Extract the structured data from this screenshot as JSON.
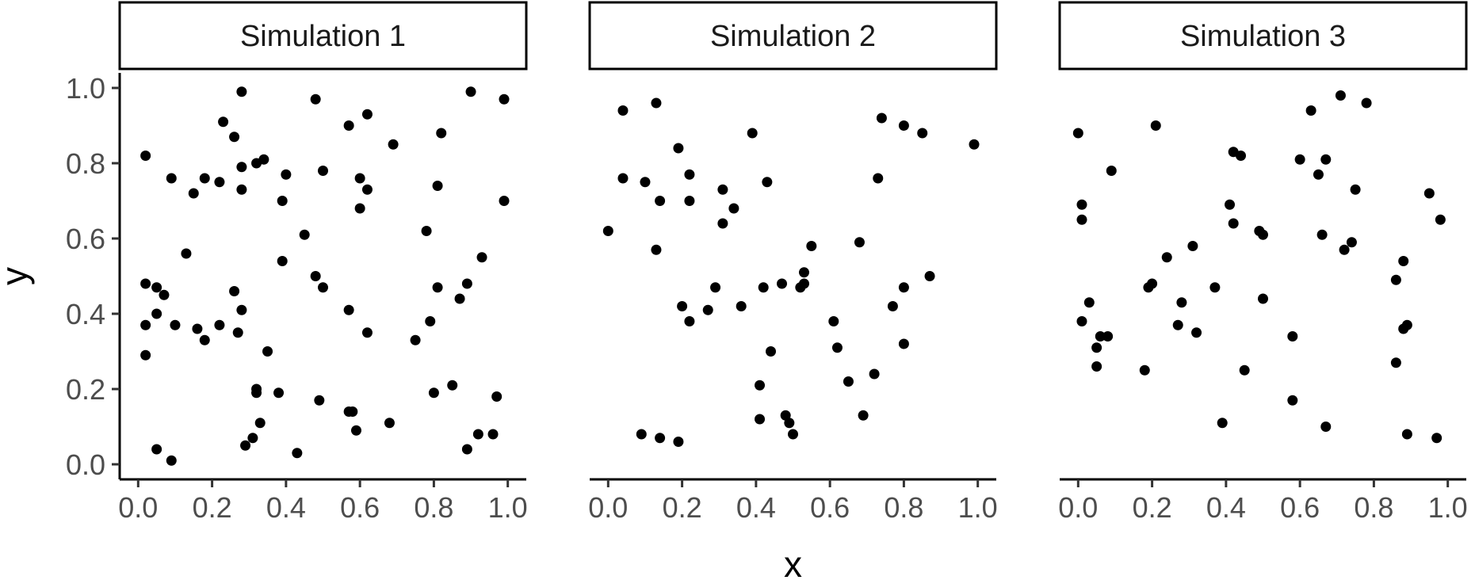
{
  "chart_data": {
    "type": "scatter",
    "xlabel": "x",
    "ylabel": "y",
    "xlim": [
      -0.05,
      1.05
    ],
    "ylim": [
      -0.04,
      1.04
    ],
    "x_ticks": [
      "0.0",
      "0.2",
      "0.4",
      "0.6",
      "0.8",
      "1.0"
    ],
    "y_ticks": [
      "0.0",
      "0.2",
      "0.4",
      "0.6",
      "0.8",
      "1.0"
    ],
    "grid": false,
    "legend": "none",
    "point_color": "#000000",
    "panels": [
      {
        "title": "Simulation 1",
        "points": [
          [
            0.28,
            0.99
          ],
          [
            0.48,
            0.97
          ],
          [
            0.9,
            0.99
          ],
          [
            0.99,
            0.97
          ],
          [
            0.23,
            0.91
          ],
          [
            0.26,
            0.87
          ],
          [
            0.57,
            0.9
          ],
          [
            0.62,
            0.93
          ],
          [
            0.82,
            0.88
          ],
          [
            0.69,
            0.85
          ],
          [
            0.02,
            0.82
          ],
          [
            0.28,
            0.79
          ],
          [
            0.32,
            0.8
          ],
          [
            0.34,
            0.81
          ],
          [
            0.5,
            0.78
          ],
          [
            0.09,
            0.76
          ],
          [
            0.18,
            0.76
          ],
          [
            0.22,
            0.75
          ],
          [
            0.4,
            0.77
          ],
          [
            0.6,
            0.76
          ],
          [
            0.81,
            0.74
          ],
          [
            0.15,
            0.72
          ],
          [
            0.28,
            0.73
          ],
          [
            0.62,
            0.73
          ],
          [
            0.39,
            0.7
          ],
          [
            0.99,
            0.7
          ],
          [
            0.6,
            0.68
          ],
          [
            0.78,
            0.62
          ],
          [
            0.45,
            0.61
          ],
          [
            0.13,
            0.56
          ],
          [
            0.93,
            0.55
          ],
          [
            0.39,
            0.54
          ],
          [
            0.48,
            0.5
          ],
          [
            0.02,
            0.48
          ],
          [
            0.05,
            0.47
          ],
          [
            0.5,
            0.47
          ],
          [
            0.81,
            0.47
          ],
          [
            0.89,
            0.48
          ],
          [
            0.26,
            0.46
          ],
          [
            0.07,
            0.45
          ],
          [
            0.87,
            0.44
          ],
          [
            0.28,
            0.41
          ],
          [
            0.05,
            0.4
          ],
          [
            0.57,
            0.41
          ],
          [
            0.02,
            0.37
          ],
          [
            0.1,
            0.37
          ],
          [
            0.16,
            0.36
          ],
          [
            0.22,
            0.37
          ],
          [
            0.27,
            0.35
          ],
          [
            0.62,
            0.35
          ],
          [
            0.79,
            0.38
          ],
          [
            0.75,
            0.33
          ],
          [
            0.18,
            0.33
          ],
          [
            0.02,
            0.29
          ],
          [
            0.35,
            0.3
          ],
          [
            0.32,
            0.2
          ],
          [
            0.32,
            0.19
          ],
          [
            0.38,
            0.19
          ],
          [
            0.8,
            0.19
          ],
          [
            0.85,
            0.21
          ],
          [
            0.49,
            0.17
          ],
          [
            0.97,
            0.18
          ],
          [
            0.57,
            0.14
          ],
          [
            0.58,
            0.14
          ],
          [
            0.33,
            0.11
          ],
          [
            0.68,
            0.11
          ],
          [
            0.59,
            0.09
          ],
          [
            0.31,
            0.07
          ],
          [
            0.92,
            0.08
          ],
          [
            0.96,
            0.08
          ],
          [
            0.29,
            0.05
          ],
          [
            0.05,
            0.04
          ],
          [
            0.43,
            0.03
          ],
          [
            0.89,
            0.04
          ],
          [
            0.09,
            0.01
          ]
        ]
      },
      {
        "title": "Simulation 2",
        "points": [
          [
            0.13,
            0.96
          ],
          [
            0.04,
            0.94
          ],
          [
            0.74,
            0.92
          ],
          [
            0.8,
            0.9
          ],
          [
            0.85,
            0.88
          ],
          [
            0.99,
            0.85
          ],
          [
            0.39,
            0.88
          ],
          [
            0.19,
            0.84
          ],
          [
            0.22,
            0.77
          ],
          [
            0.04,
            0.76
          ],
          [
            0.1,
            0.75
          ],
          [
            0.43,
            0.75
          ],
          [
            0.73,
            0.76
          ],
          [
            0.31,
            0.73
          ],
          [
            0.14,
            0.7
          ],
          [
            0.22,
            0.7
          ],
          [
            0.34,
            0.68
          ],
          [
            0.31,
            0.64
          ],
          [
            0.0,
            0.62
          ],
          [
            0.68,
            0.59
          ],
          [
            0.55,
            0.58
          ],
          [
            0.13,
            0.57
          ],
          [
            0.53,
            0.51
          ],
          [
            0.87,
            0.5
          ],
          [
            0.53,
            0.48
          ],
          [
            0.47,
            0.48
          ],
          [
            0.42,
            0.47
          ],
          [
            0.52,
            0.47
          ],
          [
            0.29,
            0.47
          ],
          [
            0.8,
            0.47
          ],
          [
            0.2,
            0.42
          ],
          [
            0.27,
            0.41
          ],
          [
            0.36,
            0.42
          ],
          [
            0.77,
            0.42
          ],
          [
            0.22,
            0.38
          ],
          [
            0.61,
            0.38
          ],
          [
            0.62,
            0.31
          ],
          [
            0.44,
            0.3
          ],
          [
            0.8,
            0.32
          ],
          [
            0.72,
            0.24
          ],
          [
            0.65,
            0.22
          ],
          [
            0.41,
            0.21
          ],
          [
            0.41,
            0.12
          ],
          [
            0.48,
            0.13
          ],
          [
            0.49,
            0.11
          ],
          [
            0.69,
            0.13
          ],
          [
            0.5,
            0.08
          ],
          [
            0.09,
            0.08
          ],
          [
            0.14,
            0.07
          ],
          [
            0.19,
            0.06
          ]
        ]
      },
      {
        "title": "Simulation 3",
        "points": [
          [
            0.71,
            0.98
          ],
          [
            0.78,
            0.96
          ],
          [
            0.63,
            0.94
          ],
          [
            0.21,
            0.9
          ],
          [
            0.0,
            0.88
          ],
          [
            0.42,
            0.83
          ],
          [
            0.44,
            0.82
          ],
          [
            0.6,
            0.81
          ],
          [
            0.67,
            0.81
          ],
          [
            0.09,
            0.78
          ],
          [
            0.65,
            0.77
          ],
          [
            0.75,
            0.73
          ],
          [
            0.95,
            0.72
          ],
          [
            0.01,
            0.69
          ],
          [
            0.41,
            0.69
          ],
          [
            0.01,
            0.65
          ],
          [
            0.98,
            0.65
          ],
          [
            0.42,
            0.64
          ],
          [
            0.49,
            0.62
          ],
          [
            0.5,
            0.61
          ],
          [
            0.66,
            0.61
          ],
          [
            0.74,
            0.59
          ],
          [
            0.72,
            0.57
          ],
          [
            0.31,
            0.58
          ],
          [
            0.24,
            0.55
          ],
          [
            0.88,
            0.54
          ],
          [
            0.86,
            0.49
          ],
          [
            0.2,
            0.48
          ],
          [
            0.19,
            0.47
          ],
          [
            0.37,
            0.47
          ],
          [
            0.5,
            0.44
          ],
          [
            0.03,
            0.43
          ],
          [
            0.28,
            0.43
          ],
          [
            0.01,
            0.38
          ],
          [
            0.27,
            0.37
          ],
          [
            0.89,
            0.37
          ],
          [
            0.88,
            0.36
          ],
          [
            0.32,
            0.35
          ],
          [
            0.06,
            0.34
          ],
          [
            0.08,
            0.34
          ],
          [
            0.58,
            0.34
          ],
          [
            0.05,
            0.31
          ],
          [
            0.86,
            0.27
          ],
          [
            0.05,
            0.26
          ],
          [
            0.18,
            0.25
          ],
          [
            0.45,
            0.25
          ],
          [
            0.58,
            0.17
          ],
          [
            0.39,
            0.11
          ],
          [
            0.67,
            0.1
          ],
          [
            0.89,
            0.08
          ],
          [
            0.97,
            0.07
          ]
        ]
      }
    ]
  }
}
